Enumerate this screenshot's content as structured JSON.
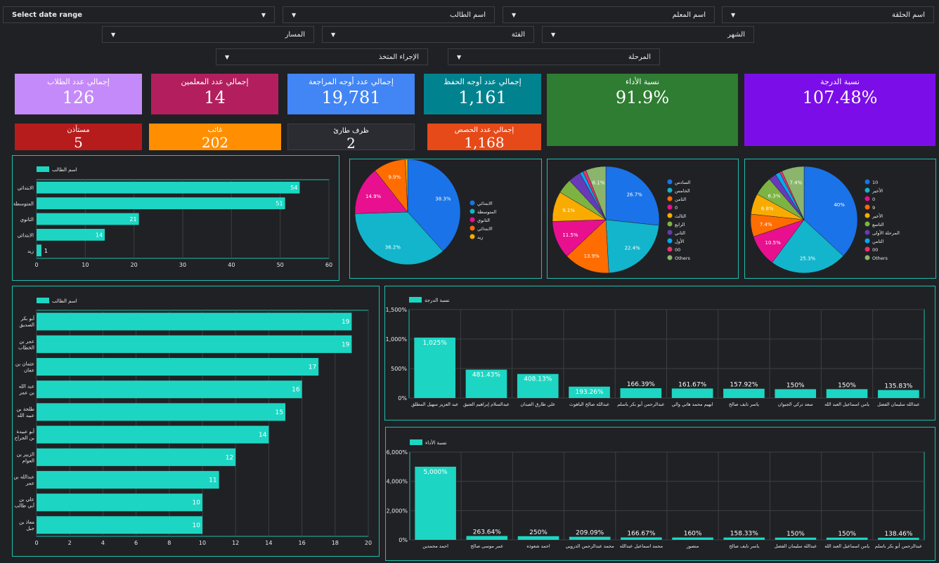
{
  "filters": {
    "date_range": "Select date range",
    "student_name": "اسم الطالب",
    "teacher_name": "اسم المعلم",
    "circle_name": "اسم الحلقة",
    "track": "المسار",
    "category": "الفئة",
    "month": "الشهر",
    "action_taken": "الإجراء المتخذ",
    "stage": "المرحلة"
  },
  "kpis": {
    "students": {
      "label": "إجمالي عدد الطلاب",
      "value": "126",
      "color": "#c58af9"
    },
    "teachers": {
      "label": "إجمالي عدد المعلمين",
      "value": "14",
      "color": "#b31f5e"
    },
    "review": {
      "label": "إجمالي عدد أوجه المراجعة",
      "value": "19,781",
      "color": "#4285f4"
    },
    "memorize": {
      "label": "إجمالي عدد أوجه الحفظ",
      "value": "1,161",
      "color": "#00838f"
    },
    "performance": {
      "label": "نسبة الأداء",
      "value": "91.9%",
      "color": "#2e7d32"
    },
    "grade": {
      "label": "نسبة الدرجة",
      "value": "107.48%",
      "color": "#7b0ee8"
    },
    "excused": {
      "label": "مستأذن",
      "value": "5",
      "color": "#b71c1c"
    },
    "absent": {
      "label": "غائب",
      "value": "202",
      "color": "#ff8f00"
    },
    "emergency": {
      "label": "ظرف طارئ",
      "value": "2",
      "color": "#2b2c31"
    },
    "sessions": {
      "label": "إجمالي عدد الحصص",
      "value": "1,168",
      "color": "#e64a19"
    }
  },
  "chart_data": [
    {
      "id": "stage_bar",
      "type": "bar",
      "orientation": "horizontal",
      "legend": "اسم الطالب",
      "categories": [
        "الابتدائي",
        "المتوسطة",
        "الثانوي",
        "الابتدائي",
        "زيد"
      ],
      "values": [
        54,
        51,
        21,
        14,
        1
      ],
      "xlim": [
        0,
        60
      ],
      "ticks": [
        0,
        10,
        20,
        30,
        40,
        50,
        60
      ]
    },
    {
      "id": "pie_stage",
      "type": "pie",
      "labels": [
        "الابتدائي",
        "المتوسطة",
        "الثانوي",
        "الابتدائي",
        "زيد"
      ],
      "values": [
        38.3,
        36.2,
        14.9,
        9.9,
        0.7
      ],
      "shown_labels": [
        "38.3%",
        "36.2%",
        "14.9%",
        "9.9%",
        ""
      ],
      "colors": [
        "#1a73e8",
        "#12b5cb",
        "#e8108f",
        "#ff6d00",
        "#f9ab00"
      ]
    },
    {
      "id": "pie_grades",
      "type": "pie",
      "labels": [
        "السادس",
        "الخامس",
        "الثامن",
        "0",
        "الثالث",
        "الرابع",
        "الثاني",
        "الأول",
        "00",
        "Others"
      ],
      "values": [
        26.7,
        22.4,
        13.9,
        11.5,
        9.1,
        4.5,
        3.8,
        1.0,
        1.0,
        6.1
      ],
      "shown_labels": [
        "26.7%",
        "22.4%",
        "13.9%",
        "11.5%",
        "9.1%",
        "",
        "",
        "",
        "",
        "6.1%"
      ],
      "colors": [
        "#1a73e8",
        "#12b5cb",
        "#ff6d00",
        "#e8108f",
        "#f9ab00",
        "#7cb342",
        "#673ab7",
        "#03a9f4",
        "#e8336d",
        "#8bb56d"
      ]
    },
    {
      "id": "pie_parts",
      "type": "pie",
      "labels": [
        "10",
        "الأخير",
        "0",
        "9",
        "الأخير",
        "التاسع",
        "المرحلة الأولى",
        "الثامن",
        "00",
        "Others"
      ],
      "values": [
        40,
        25.3,
        10.5,
        7.4,
        6.8,
        6.3,
        2.5,
        1.5,
        0.8,
        7.4
      ],
      "shown_labels": [
        "40%",
        "25.3%",
        "10.5%",
        "7.4%",
        "6.8%",
        "6.3%",
        "",
        "",
        "",
        "7.4%"
      ],
      "colors": [
        "#1a73e8",
        "#12b5cb",
        "#e8108f",
        "#ff6d00",
        "#f9ab00",
        "#7cb342",
        "#673ab7",
        "#03a9f4",
        "#e8336d",
        "#8bb56d"
      ]
    },
    {
      "id": "students_bar",
      "type": "bar",
      "orientation": "horizontal",
      "legend": "اسم الطالب",
      "categories": [
        "أبو بكر الصديق",
        "عمر بن الخطاب",
        "عثمان بن عفان",
        "عبد الله بن عمر",
        "طلحة بن عبيد الله",
        "أبو عبيدة بن الجراح",
        "الزبير بن العوام",
        "عبدالله بن عمر",
        "علي بن أبي طالب",
        "معاذ بن جبل"
      ],
      "values": [
        19,
        19,
        17,
        16,
        15,
        14,
        12,
        11,
        10,
        10
      ],
      "xlim": [
        0,
        20
      ],
      "ticks": [
        0,
        2,
        4,
        6,
        8,
        10,
        12,
        14,
        16,
        18,
        20
      ]
    },
    {
      "id": "grade_bar",
      "type": "bar",
      "legend": "نسبة الدرجة",
      "categories": [
        "عبد العزيز سهيل المطلق",
        "عبدالسلام إبراهيم العتيق",
        "علي طارق العيدان",
        "عبدالله صالح الباهوث",
        "عبدالرحمن أبو بكر باسلم",
        "ابهيم محمد هاني والي",
        "ياسر نايف صالح",
        "سعد تركي الجبوان",
        "يامن اسماعيل العبد الله",
        "عبدالله سليمان الفضل"
      ],
      "values": [
        1025,
        481.43,
        408.13,
        193.26,
        166.39,
        161.67,
        157.92,
        150,
        150,
        135.83
      ],
      "value_labels": [
        "1,025%",
        "481.43%",
        "408.13%",
        "193.26%",
        "166.39%",
        "161.67%",
        "157.92%",
        "150%",
        "150%",
        "135.83%"
      ],
      "ylim": [
        0,
        1500
      ],
      "ticks": [
        "0%",
        "500%",
        "1,000%",
        "1,500%"
      ],
      "tick_values": [
        0,
        500,
        1000,
        1500
      ]
    },
    {
      "id": "perf_bar",
      "type": "bar",
      "legend": "نسبة الأداء",
      "categories": [
        "احمد محمدين",
        "عمر موسى صالح",
        "احمد شعوذه",
        "محمد عبدالرحمن الدرويي",
        "محمد اسماعيل عبدالله",
        "منصور",
        "ياسر نايف صالح",
        "عبدالله سليمان الفضل",
        "يامن اسماعيل العبد الله",
        "عبدالرحمن أبو بكر باسلم"
      ],
      "values": [
        5000,
        263.64,
        250,
        209.09,
        166.67,
        160,
        158.33,
        150,
        150,
        138.46
      ],
      "value_labels": [
        "5,000%",
        "263.64%",
        "250%",
        "209.09%",
        "166.67%",
        "160%",
        "158.33%",
        "150%",
        "150%",
        "138.46%"
      ],
      "ylim": [
        0,
        6000
      ],
      "ticks": [
        "0%",
        "2,000%",
        "4,000%",
        "6,000%"
      ],
      "tick_values": [
        0,
        2000,
        4000,
        6000
      ]
    }
  ]
}
